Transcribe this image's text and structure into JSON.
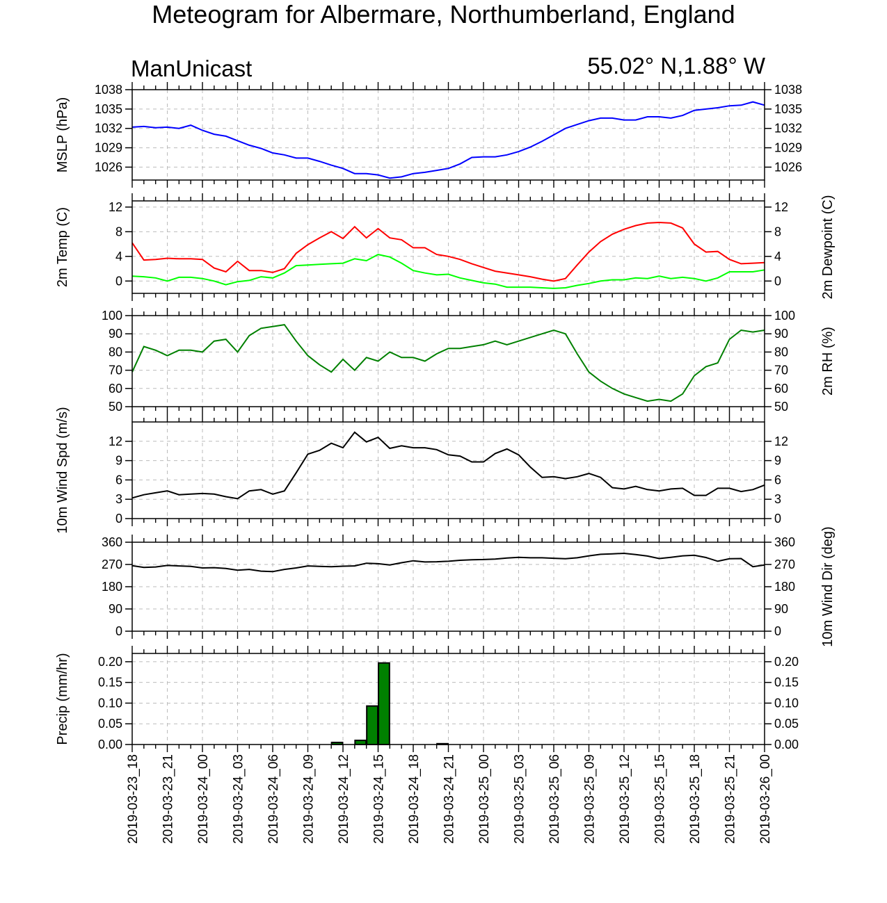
{
  "title": "Meteogram for Albermare, Northumberland, England",
  "model": "ManUnicast",
  "coords": "55.02° N,1.88° W",
  "chart_data": [
    {
      "type": "line",
      "ylabel": "MSLP (hPa)",
      "ylim": [
        1024,
        1038
      ],
      "yticks": [
        1038,
        1035,
        1032,
        1029,
        1026
      ],
      "series": [
        {
          "color": "#0000ff",
          "values": [
            1032.2,
            1032.3,
            1032.1,
            1032.2,
            1032.0,
            1032.5,
            1031.7,
            1031.1,
            1030.8,
            1030.1,
            1029.4,
            1028.9,
            1028.2,
            1027.9,
            1027.4,
            1027.4,
            1026.9,
            1026.3,
            1025.8,
            1025.0,
            1025.0,
            1024.8,
            1024.3,
            1024.5,
            1025.0,
            1025.2,
            1025.5,
            1025.8,
            1026.5,
            1027.5,
            1027.6,
            1027.6,
            1027.9,
            1028.4,
            1029.1,
            1030.0,
            1031.0,
            1032.0,
            1032.6,
            1033.2,
            1033.6,
            1033.6,
            1033.3,
            1033.3,
            1033.8,
            1033.8,
            1033.6,
            1034.0,
            1034.8,
            1035.0,
            1035.2,
            1035.5,
            1035.6,
            1036.1,
            1035.6
          ]
        }
      ]
    },
    {
      "type": "line",
      "ylabel": "2m Temp (C)",
      "ylabel_right": "2m Dewpoint (C)",
      "ylim": [
        -2,
        13
      ],
      "yticks": [
        12,
        8,
        4,
        0
      ],
      "series": [
        {
          "color": "#ff0000",
          "values": [
            6.2,
            3.4,
            3.5,
            3.7,
            3.6,
            3.6,
            3.5,
            2.1,
            1.5,
            3.2,
            1.7,
            1.7,
            1.4,
            2.0,
            4.5,
            5.9,
            7.0,
            8.0,
            6.9,
            8.8,
            7.0,
            8.5,
            7.0,
            6.7,
            5.4,
            5.4,
            4.3,
            4.0,
            3.5,
            2.8,
            2.2,
            1.6,
            1.3,
            1.0,
            0.7,
            0.3,
            0.0,
            0.4,
            2.6,
            4.7,
            6.4,
            7.6,
            8.4,
            9.0,
            9.4,
            9.5,
            9.4,
            8.6,
            6.0,
            4.7,
            4.8,
            3.5,
            2.8,
            2.9,
            3.0
          ]
        },
        {
          "color": "#00ff00",
          "values": [
            0.8,
            0.7,
            0.5,
            0.0,
            0.6,
            0.6,
            0.4,
            0.0,
            -0.6,
            -0.1,
            0.1,
            0.7,
            0.5,
            1.3,
            2.5,
            2.6,
            2.7,
            2.8,
            2.9,
            3.6,
            3.3,
            4.3,
            3.9,
            2.9,
            1.7,
            1.3,
            1.0,
            1.1,
            0.5,
            0.1,
            -0.3,
            -0.5,
            -1.0,
            -1.0,
            -1.0,
            -1.1,
            -1.2,
            -1.1,
            -0.7,
            -0.4,
            0.0,
            0.2,
            0.2,
            0.5,
            0.4,
            0.8,
            0.4,
            0.6,
            0.4,
            0.0,
            0.5,
            1.5,
            1.5,
            1.5,
            1.8
          ]
        }
      ]
    },
    {
      "type": "line",
      "ylabel_right": "2m RH (%)",
      "ylim": [
        50,
        100
      ],
      "yticks": [
        100,
        90,
        80,
        70,
        60,
        50
      ],
      "series": [
        {
          "color": "#008000",
          "values": [
            69,
            83,
            81,
            78,
            81,
            81,
            80,
            86,
            87,
            80,
            89,
            93,
            94,
            95,
            86,
            78,
            73,
            69,
            76,
            70,
            77,
            75,
            80,
            77,
            77,
            75,
            79,
            82,
            82,
            83,
            84,
            86,
            84,
            86,
            88,
            90,
            92,
            90,
            79,
            69,
            64,
            60,
            57,
            55,
            53,
            54,
            53,
            57,
            67,
            72,
            74,
            87,
            92,
            91,
            92
          ]
        }
      ]
    },
    {
      "type": "line",
      "ylabel": "10m Wind Spd (m/s)",
      "ylim": [
        0,
        15
      ],
      "yticks": [
        12,
        9,
        6,
        3,
        0
      ],
      "series": [
        {
          "color": "#000000",
          "values": [
            3.2,
            3.7,
            4.0,
            4.3,
            3.7,
            3.8,
            3.9,
            3.8,
            3.4,
            3.1,
            4.3,
            4.5,
            3.8,
            4.3,
            7.1,
            10.0,
            10.6,
            11.7,
            11.0,
            13.4,
            11.9,
            12.6,
            10.9,
            11.3,
            11.0,
            11.0,
            10.7,
            9.9,
            9.7,
            8.8,
            8.8,
            10.1,
            10.8,
            9.9,
            8.0,
            6.4,
            6.5,
            6.2,
            6.5,
            7.0,
            6.4,
            4.8,
            4.6,
            5.0,
            4.5,
            4.3,
            4.6,
            4.7,
            3.6,
            3.6,
            4.7,
            4.7,
            4.2,
            4.5,
            5.2
          ]
        }
      ]
    },
    {
      "type": "line",
      "ylabel_right": "10m Wind Dir (deg)",
      "ylim": [
        0,
        360
      ],
      "yticks": [
        360,
        270,
        180,
        90,
        0
      ],
      "series": [
        {
          "color": "#000000",
          "values": [
            265,
            258,
            260,
            266,
            264,
            262,
            256,
            257,
            254,
            247,
            250,
            243,
            241,
            250,
            256,
            264,
            262,
            261,
            263,
            264,
            275,
            273,
            268,
            277,
            285,
            280,
            281,
            283,
            287,
            289,
            290,
            292,
            296,
            299,
            297,
            297,
            295,
            293,
            297,
            305,
            311,
            313,
            315,
            310,
            304,
            294,
            299,
            305,
            307,
            298,
            283,
            293,
            294,
            261,
            268
          ]
        }
      ]
    },
    {
      "type": "bar",
      "ylabel": "Precip (mm/hr)",
      "ylim": [
        0,
        0.22
      ],
      "yticks": [
        "0.20",
        "0.15",
        "0.10",
        "0.05",
        "0.00"
      ],
      "color": "#008000",
      "values": [
        0,
        0,
        0,
        0,
        0,
        0,
        0,
        0,
        0,
        0,
        0,
        0,
        0,
        0,
        0,
        0,
        0,
        0.005,
        0,
        0.01,
        0.093,
        0.197,
        0,
        0,
        0,
        0,
        0.002,
        0,
        0,
        0,
        0,
        0,
        0,
        0,
        0,
        0,
        0,
        0,
        0,
        0,
        0,
        0,
        0,
        0,
        0,
        0,
        0,
        0,
        0,
        0,
        0,
        0,
        0,
        0
      ]
    }
  ],
  "x_labels": [
    "2019-03-23_18",
    "2019-03-23_21",
    "2019-03-24_00",
    "2019-03-24_03",
    "2019-03-24_06",
    "2019-03-24_09",
    "2019-03-24_12",
    "2019-03-24_15",
    "2019-03-24_18",
    "2019-03-24_21",
    "2019-03-25_00",
    "2019-03-25_03",
    "2019-03-25_06",
    "2019-03-25_09",
    "2019-03-25_12",
    "2019-03-25_15",
    "2019-03-25_18",
    "2019-03-25_21",
    "2019-03-26_00"
  ]
}
